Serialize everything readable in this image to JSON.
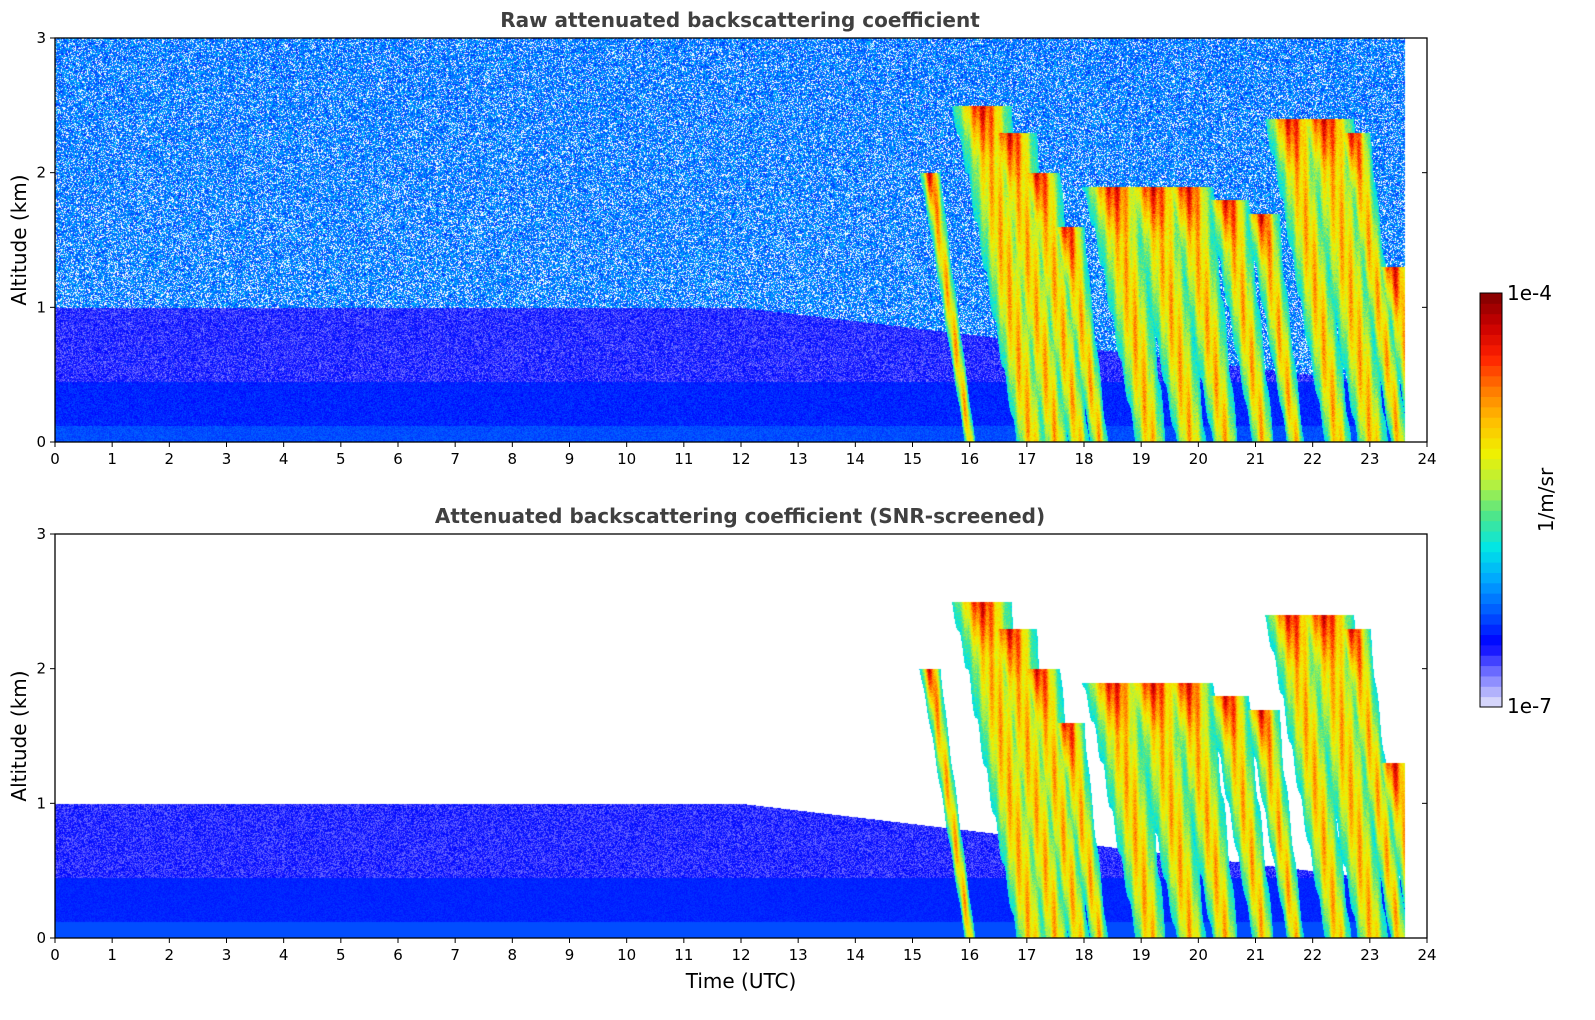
{
  "chart_data": [
    {
      "type": "heatmap",
      "title": "Raw attenuated backscattering coefficient",
      "xlabel": "",
      "ylabel": "Altitude (km)",
      "xlim": [
        0,
        24
      ],
      "ylim": [
        0,
        3
      ],
      "x_ticks": [
        "0",
        "1",
        "2",
        "3",
        "4",
        "5",
        "6",
        "7",
        "8",
        "9",
        "10",
        "11",
        "12",
        "13",
        "14",
        "15",
        "16",
        "17",
        "18",
        "19",
        "20",
        "21",
        "22",
        "23",
        "24"
      ],
      "y_ticks": [
        "0",
        "1",
        "2",
        "3"
      ],
      "screened": false
    },
    {
      "type": "heatmap",
      "title": "Attenuated backscattering coefficient (SNR-screened)",
      "xlabel": "Time (UTC)",
      "ylabel": "Altitude (km)",
      "xlim": [
        0,
        24
      ],
      "ylim": [
        0,
        3
      ],
      "x_ticks": [
        "0",
        "1",
        "2",
        "3",
        "4",
        "5",
        "6",
        "7",
        "8",
        "9",
        "10",
        "11",
        "12",
        "13",
        "14",
        "15",
        "16",
        "17",
        "18",
        "19",
        "20",
        "21",
        "22",
        "23",
        "24"
      ],
      "y_ticks": [
        "0",
        "1",
        "2",
        "3"
      ],
      "screened": true
    }
  ],
  "colorbar": {
    "label": "1/m/sr",
    "max_label": "1e-4",
    "min_label": "1e-7",
    "colors": [
      "#e6e6fa",
      "#7b7bff",
      "#0000ff",
      "#0059ff",
      "#00a6ff",
      "#00e6e6",
      "#4ce68c",
      "#b3f040",
      "#f0f000",
      "#ffbe00",
      "#ff7800",
      "#ff2000",
      "#c80000",
      "#800000"
    ]
  }
}
